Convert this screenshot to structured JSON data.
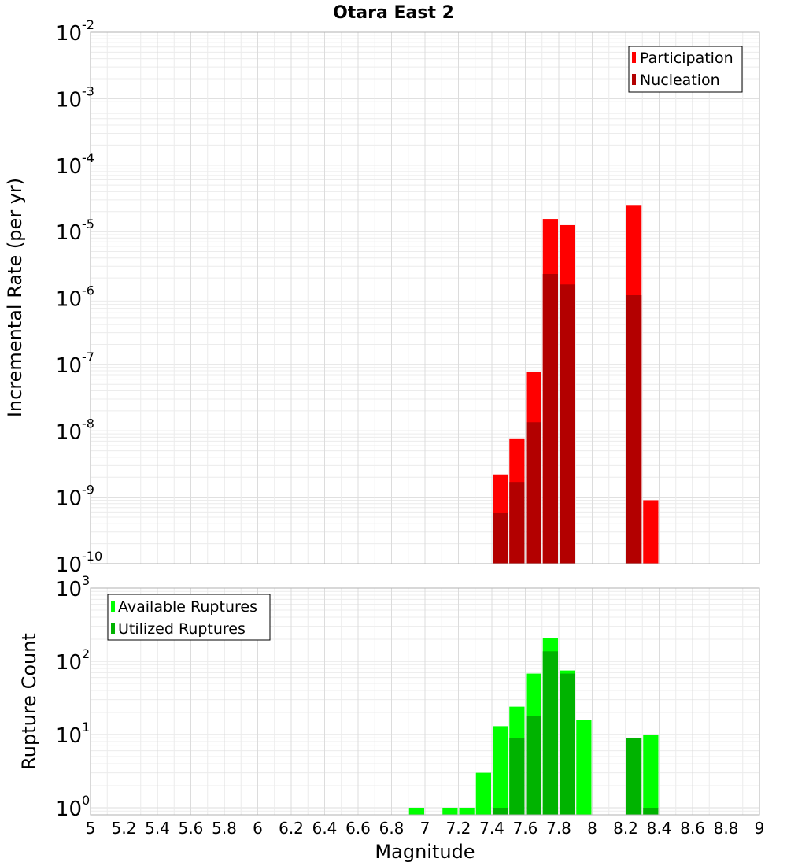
{
  "chart_data": [
    {
      "type": "bar",
      "title": "Otara East 2",
      "ylabel": "Incremental Rate (per yr)",
      "xlabel": "",
      "yscale": "log",
      "ylim": [
        1e-10,
        0.01
      ],
      "xlim": [
        5,
        9
      ],
      "bin_width": 0.1,
      "y_tick_labels": [
        {
          "base": "10",
          "exp": "-10"
        },
        {
          "base": "10",
          "exp": "-9"
        },
        {
          "base": "10",
          "exp": "-8"
        },
        {
          "base": "10",
          "exp": "-7"
        },
        {
          "base": "10",
          "exp": "-6"
        },
        {
          "base": "10",
          "exp": "-5"
        },
        {
          "base": "10",
          "exp": "-4"
        },
        {
          "base": "10",
          "exp": "-3"
        },
        {
          "base": "10",
          "exp": "-2"
        }
      ],
      "grid": true,
      "legend_position": "top-right",
      "series": [
        {
          "name": "Participation",
          "color": "#ff0000",
          "x": [
            7.45,
            7.55,
            7.65,
            7.75,
            7.85,
            8.25,
            8.35
          ],
          "values": [
            2.2e-09,
            7.7e-09,
            7.7e-08,
            1.55e-05,
            1.25e-05,
            2.45e-05,
            9e-10
          ]
        },
        {
          "name": "Nucleation",
          "color": "#b30000",
          "x": [
            7.45,
            7.55,
            7.65,
            7.75,
            7.85,
            8.25
          ],
          "values": [
            5.9e-10,
            1.7e-09,
            1.35e-08,
            2.3e-06,
            1.6e-06,
            1.1e-06
          ]
        }
      ]
    },
    {
      "type": "bar",
      "title": "",
      "ylabel": "Rupture Count",
      "xlabel": "Magnitude",
      "yscale": "log",
      "ylim": [
        0.8,
        1000
      ],
      "xlim": [
        5,
        9
      ],
      "bin_width": 0.1,
      "x_tick_labels": [
        "5",
        "5.2",
        "5.4",
        "5.6",
        "5.8",
        "6",
        "6.2",
        "6.4",
        "6.6",
        "6.8",
        "7",
        "7.2",
        "7.4",
        "7.6",
        "7.8",
        "8",
        "8.2",
        "8.4",
        "8.6",
        "8.8",
        "9"
      ],
      "y_tick_labels": [
        {
          "base": "10",
          "exp": "0"
        },
        {
          "base": "10",
          "exp": "1"
        },
        {
          "base": "10",
          "exp": "2"
        },
        {
          "base": "10",
          "exp": "3"
        }
      ],
      "grid": true,
      "legend_position": "top-left",
      "series": [
        {
          "name": "Available Ruptures",
          "color": "#00ff00",
          "x": [
            6.95,
            7.15,
            7.25,
            7.35,
            7.45,
            7.55,
            7.65,
            7.75,
            7.85,
            7.95,
            8.35
          ],
          "values": [
            1,
            1,
            1,
            3,
            13,
            24,
            68,
            205,
            75,
            16,
            10
          ]
        },
        {
          "name": "Utilized Ruptures",
          "color": "#00b300",
          "x": [
            7.45,
            7.55,
            7.65,
            7.75,
            7.85,
            8.25,
            8.35
          ],
          "values": [
            1,
            9,
            18,
            137,
            68,
            9,
            1
          ]
        }
      ]
    }
  ]
}
